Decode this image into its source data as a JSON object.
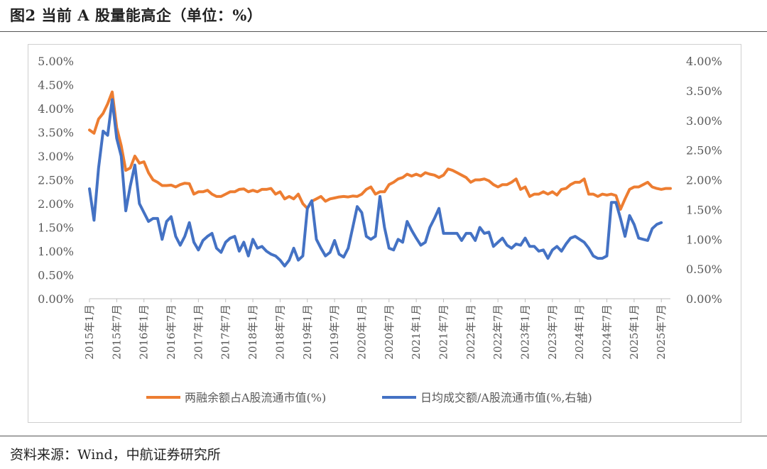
{
  "header": {
    "title": "图2 当前 A 股量能高企（单位：%）"
  },
  "footer": {
    "source": "资料来源：Wind，中航证券研究所"
  },
  "colors": {
    "series1": "#ED7D31",
    "series2": "#4472C4",
    "axis_text": "#595959",
    "axis_line": "#bfbfbf"
  },
  "chart_data": {
    "type": "line",
    "title": "",
    "xlabel": "",
    "ylabel": "",
    "grid": false,
    "legend_position": "bottom",
    "y_left": {
      "min": 0,
      "max": 5,
      "step": 0.5,
      "format": "percent2",
      "ticks": [
        "0.00%",
        "0.50%",
        "1.00%",
        "1.50%",
        "2.00%",
        "2.50%",
        "3.00%",
        "3.50%",
        "4.00%",
        "4.50%",
        "5.00%"
      ]
    },
    "y_right": {
      "min": 0,
      "max": 4,
      "step": 0.5,
      "format": "percent2",
      "ticks": [
        "0.00%",
        "0.50%",
        "1.00%",
        "1.50%",
        "2.00%",
        "2.50%",
        "3.00%",
        "3.50%",
        "4.00%"
      ]
    },
    "x_tick_labels": [
      "2015年1月",
      "2015年7月",
      "2016年1月",
      "2016年7月",
      "2017年1月",
      "2017年7月",
      "2018年1月",
      "2018年7月",
      "2019年1月",
      "2019年7月",
      "2020年1月",
      "2020年7月",
      "2021年1月",
      "2021年7月",
      "2022年1月",
      "2022年7月",
      "2023年1月",
      "2023年7月",
      "2024年1月",
      "2024年7月",
      "2025年1月",
      "2025年7月"
    ],
    "series": [
      {
        "name": "两融余额占A股流通市值(%)",
        "axis": "left",
        "values": [
          3.55,
          3.48,
          3.78,
          3.9,
          4.1,
          4.35,
          3.6,
          3.22,
          2.7,
          2.75,
          3.0,
          2.85,
          2.88,
          2.65,
          2.5,
          2.45,
          2.38,
          2.38,
          2.39,
          2.35,
          2.4,
          2.43,
          2.42,
          2.2,
          2.25,
          2.25,
          2.28,
          2.2,
          2.15,
          2.15,
          2.2,
          2.25,
          2.25,
          2.3,
          2.31,
          2.25,
          2.28,
          2.25,
          2.3,
          2.3,
          2.32,
          2.2,
          2.25,
          2.1,
          2.15,
          2.1,
          2.2,
          2.0,
          1.9,
          2.05,
          2.1,
          2.15,
          2.05,
          2.1,
          2.12,
          2.14,
          2.15,
          2.14,
          2.16,
          2.15,
          2.2,
          2.3,
          2.35,
          2.2,
          2.25,
          2.25,
          2.4,
          2.45,
          2.52,
          2.55,
          2.62,
          2.58,
          2.62,
          2.58,
          2.65,
          2.62,
          2.6,
          2.55,
          2.6,
          2.73,
          2.7,
          2.65,
          2.6,
          2.55,
          2.45,
          2.5,
          2.5,
          2.52,
          2.48,
          2.4,
          2.35,
          2.4,
          2.4,
          2.45,
          2.52,
          2.3,
          2.35,
          2.15,
          2.2,
          2.2,
          2.25,
          2.2,
          2.25,
          2.18,
          2.3,
          2.32,
          2.4,
          2.45,
          2.45,
          2.52,
          2.2,
          2.2,
          2.15,
          2.2,
          2.18,
          2.2,
          2.17,
          1.88,
          2.1,
          2.3,
          2.35,
          2.35,
          2.4,
          2.45,
          2.35,
          2.32,
          2.3,
          2.32,
          2.32
        ]
      },
      {
        "name": "日均成交额/A股流通市值(%,右轴)",
        "axis": "right",
        "values": [
          1.85,
          1.32,
          2.2,
          2.82,
          2.75,
          3.35,
          2.7,
          2.4,
          1.48,
          1.9,
          2.25,
          1.6,
          1.45,
          1.3,
          1.35,
          1.35,
          1.0,
          1.3,
          1.38,
          1.05,
          0.9,
          1.05,
          1.28,
          0.95,
          0.82,
          0.98,
          1.05,
          1.1,
          0.85,
          0.78,
          0.95,
          1.02,
          1.05,
          0.8,
          0.95,
          0.72,
          1.0,
          0.85,
          0.88,
          0.8,
          0.75,
          0.72,
          0.65,
          0.55,
          0.65,
          0.85,
          0.65,
          0.72,
          1.52,
          1.65,
          1.0,
          0.85,
          0.72,
          0.78,
          0.98,
          0.75,
          0.7,
          0.85,
          1.2,
          1.55,
          1.45,
          1.05,
          1.0,
          1.05,
          1.72,
          1.2,
          0.85,
          0.82,
          1.0,
          0.95,
          1.3,
          1.15,
          1.02,
          0.9,
          0.95,
          1.2,
          1.35,
          1.52,
          1.1,
          1.1,
          1.1,
          1.1,
          0.98,
          1.1,
          1.1,
          0.98,
          1.2,
          1.1,
          1.12,
          0.88,
          0.95,
          1.02,
          0.9,
          0.85,
          0.92,
          0.9,
          1.02,
          0.88,
          0.88,
          0.8,
          0.82,
          0.68,
          0.82,
          0.88,
          0.8,
          0.92,
          1.02,
          1.05,
          1.0,
          0.95,
          0.85,
          0.72,
          0.68,
          0.68,
          0.72,
          1.62,
          1.62,
          1.35,
          1.05,
          1.4,
          1.25,
          1.02,
          1.0,
          0.98,
          1.18,
          1.25,
          1.28
        ]
      }
    ]
  }
}
